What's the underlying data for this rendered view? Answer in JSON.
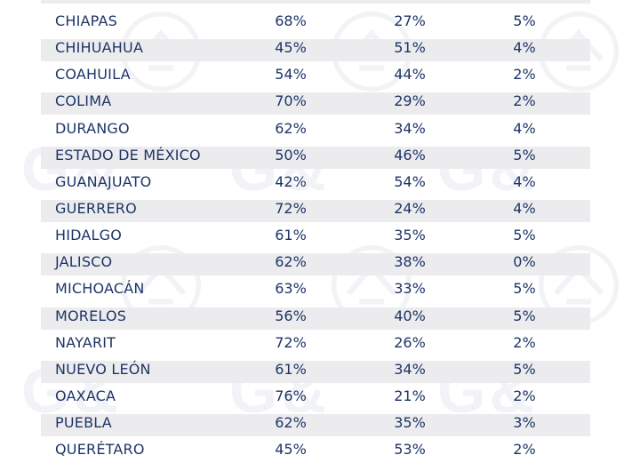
{
  "table": {
    "rows": [
      {
        "state": "CHIAPAS",
        "a": "68%",
        "b": "27%",
        "c": "5%"
      },
      {
        "state": "CHIHUAHUA",
        "a": "45%",
        "b": "51%",
        "c": "4%"
      },
      {
        "state": "COAHUILA",
        "a": "54%",
        "b": "44%",
        "c": "2%"
      },
      {
        "state": "COLIMA",
        "a": "70%",
        "b": "29%",
        "c": "2%"
      },
      {
        "state": "DURANGO",
        "a": "62%",
        "b": "34%",
        "c": "4%"
      },
      {
        "state": "ESTADO DE MÉXICO",
        "a": "50%",
        "b": "46%",
        "c": "5%"
      },
      {
        "state": "GUANAJUATO",
        "a": "42%",
        "b": "54%",
        "c": "4%"
      },
      {
        "state": "GUERRERO",
        "a": "72%",
        "b": "24%",
        "c": "4%"
      },
      {
        "state": "HIDALGO",
        "a": "61%",
        "b": "35%",
        "c": "5%"
      },
      {
        "state": "JALISCO",
        "a": "62%",
        "b": "38%",
        "c": "0%"
      },
      {
        "state": "MICHOACÁN",
        "a": "63%",
        "b": "33%",
        "c": "5%"
      },
      {
        "state": "MORELOS",
        "a": "56%",
        "b": "40%",
        "c": "5%"
      },
      {
        "state": "NAYARIT",
        "a": "72%",
        "b": "26%",
        "c": "2%"
      },
      {
        "state": "NUEVO LEÓN",
        "a": "61%",
        "b": "34%",
        "c": "5%"
      },
      {
        "state": "OAXACA",
        "a": "76%",
        "b": "21%",
        "c": "2%"
      },
      {
        "state": "PUEBLA",
        "a": "62%",
        "b": "35%",
        "c": "3%"
      },
      {
        "state": "QUERÉTARO",
        "a": "45%",
        "b": "53%",
        "c": "2%"
      }
    ]
  },
  "colors": {
    "text": "#1d3566",
    "row_shade": "#ececee"
  }
}
